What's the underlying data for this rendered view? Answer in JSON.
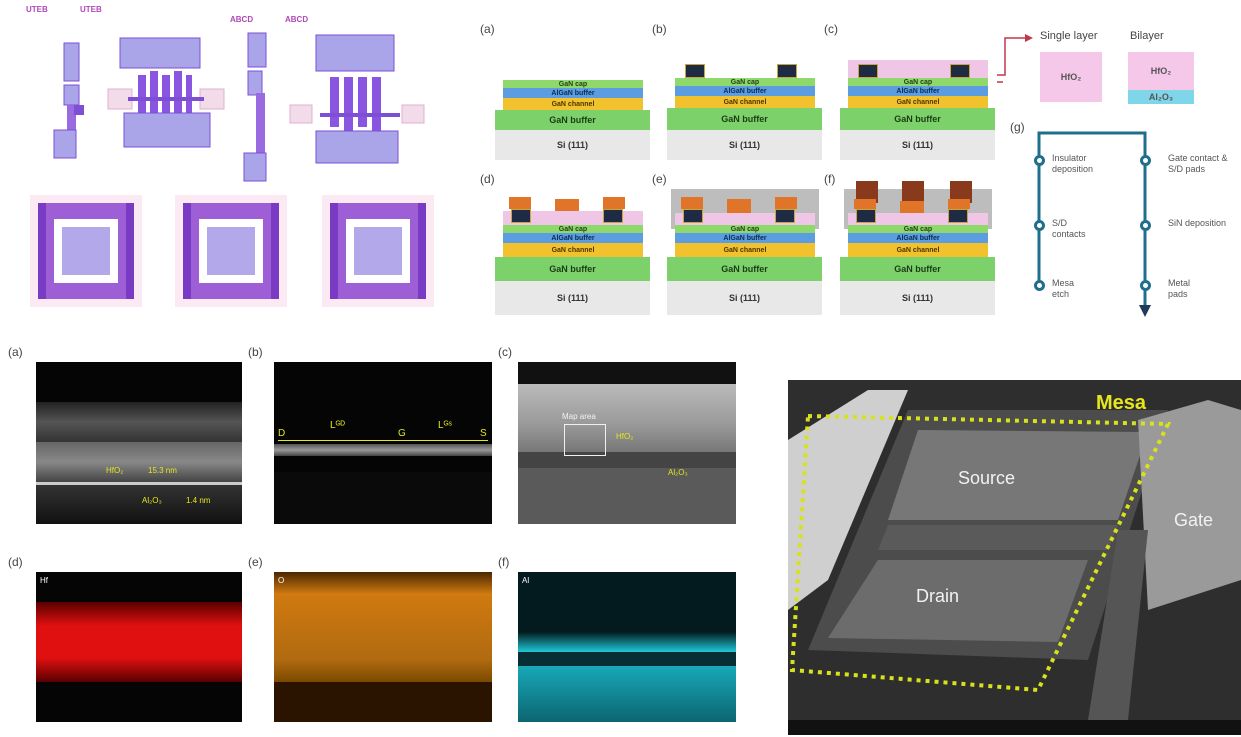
{
  "layout_panel": {
    "labels": [
      "UTEB",
      "UTEB",
      "ABCD",
      "ABCD"
    ]
  },
  "process_panel": {
    "panel_labels": [
      "(a)",
      "(b)",
      "(c)",
      "(d)",
      "(e)",
      "(f)",
      "(g)"
    ],
    "layers": {
      "substrate": "Si (111)",
      "buffer": "GaN buffer",
      "channel": "GaN channel",
      "barrier": "AlGaN buffer",
      "cap": "GaN cap"
    },
    "insulator_options": {
      "single_title": "Single layer",
      "bilayer_title": "Bilayer",
      "single_material": "HfO₂",
      "bilayer_top": "HfO₂",
      "bilayer_bottom": "Al₂O₃"
    },
    "flow_steps_left": [
      "Insulator deposition",
      "S/D contacts",
      "Mesa etch"
    ],
    "flow_steps_right": [
      "Gate contact & S/D pads",
      "SiN deposition",
      "Metal pads"
    ]
  },
  "tem_panel": {
    "panel_labels": [
      "(a)",
      "(b)",
      "(c)",
      "(d)",
      "(e)",
      "(f)"
    ],
    "a_hfo2": "HfO₂",
    "a_hfo2_thickness": "15.3 nm",
    "a_al2o3": "Al₂O₃",
    "a_al2o3_thickness": "1.4 nm",
    "b_labels": [
      "D",
      "Lᴳᴰ",
      "G",
      "Lᴳˢ",
      "S"
    ],
    "c_map_area": "Map area",
    "c_hfo2": "HfO₂",
    "c_al2o3": "Al₂O₃",
    "d_element": "Hf",
    "e_element": "O",
    "f_element": "Al",
    "colors": {
      "hf": "#e01010",
      "o": "#d07a10",
      "al": "#20c8d8"
    }
  },
  "sem_panel": {
    "mesa": "Mesa",
    "source": "Source",
    "drain": "Drain",
    "gate": "Gate"
  }
}
